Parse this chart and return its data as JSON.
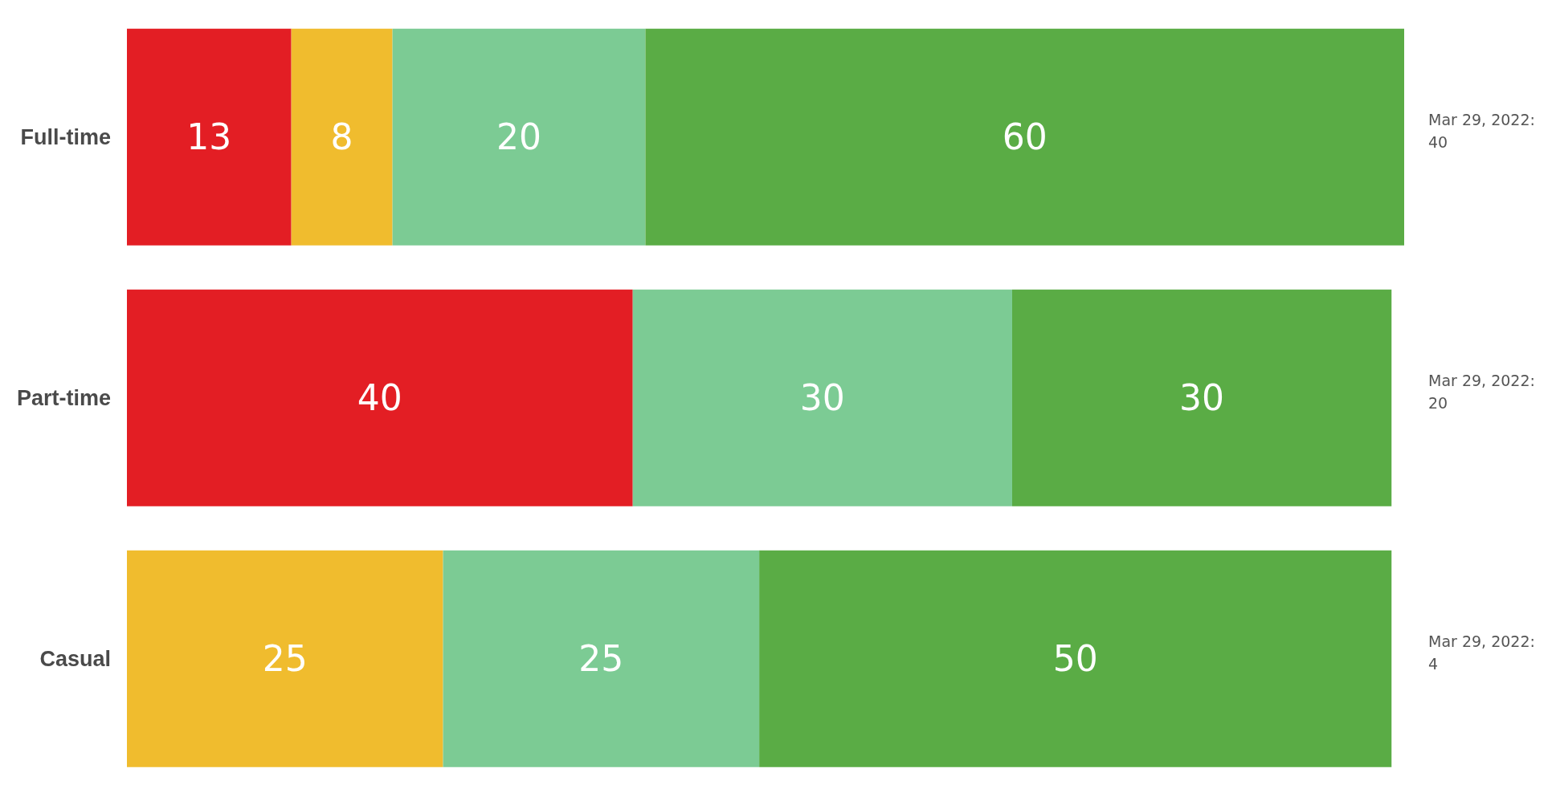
{
  "chart_data": {
    "type": "bar",
    "orientation": "horizontal",
    "stacked": true,
    "data_labels": true,
    "categories": [
      "Full-time",
      "Part-time",
      "Casual"
    ],
    "series": [
      {
        "color": "#e31e24",
        "values": [
          13,
          40,
          null
        ]
      },
      {
        "color": "#f0bc2e",
        "values": [
          8,
          null,
          25
        ]
      },
      {
        "color": "#7ccb94",
        "values": [
          20,
          30,
          25
        ]
      },
      {
        "color": "#5aac45",
        "values": [
          60,
          30,
          50
        ]
      }
    ],
    "annotations": [
      "Mar 29, 2022: 40",
      "Mar 29, 2022: 20",
      "Mar 29, 2022: 4"
    ]
  }
}
